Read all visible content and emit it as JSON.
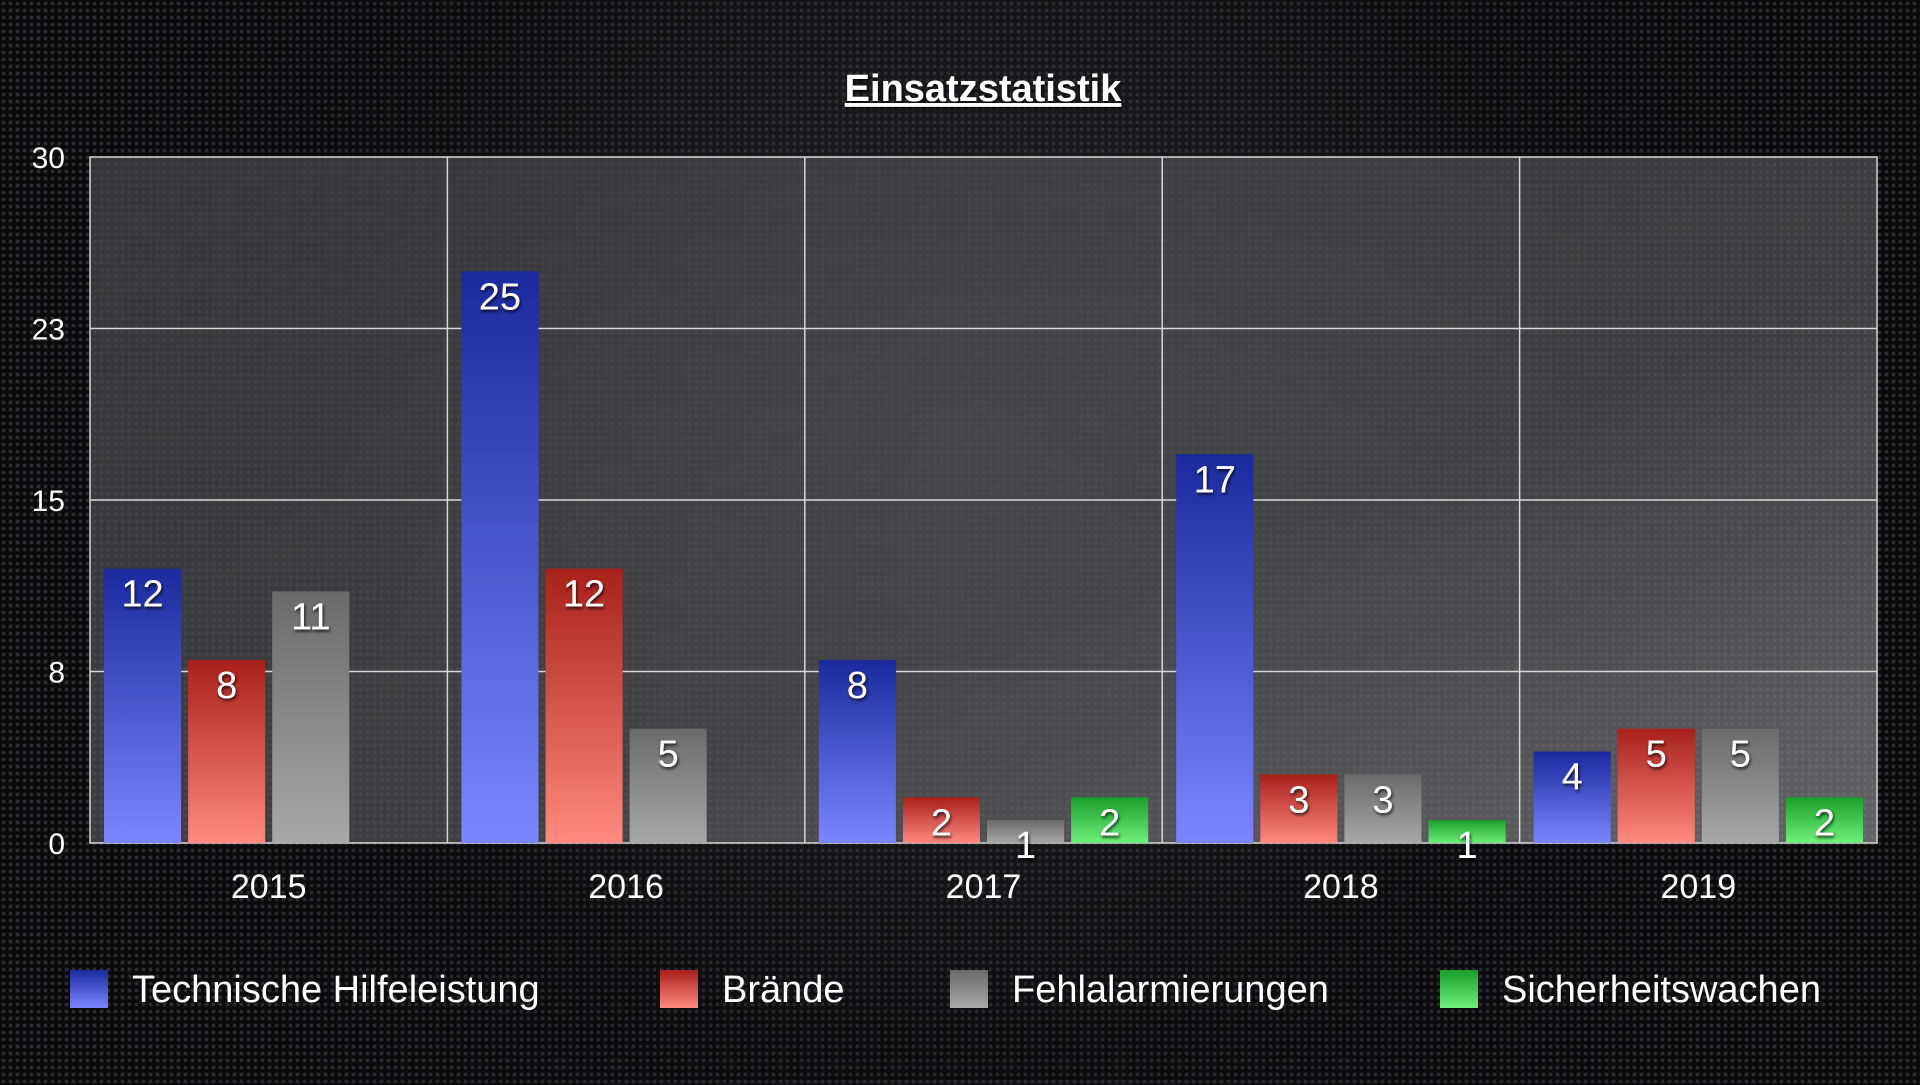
{
  "chart_data": {
    "type": "bar",
    "title": "Einsatzstatistik",
    "xlabel": "",
    "ylabel": "",
    "categories": [
      "2015",
      "2016",
      "2017",
      "2018",
      "2019"
    ],
    "y_ticks": [
      "0",
      "8",
      "15",
      "23",
      "30"
    ],
    "ylim": [
      0,
      30
    ],
    "grid": true,
    "legend_position": "bottom",
    "series": [
      {
        "name": "Technische Hilfeleistung",
        "values": [
          12,
          25,
          8,
          17,
          4
        ],
        "color_top": "#1a2a9e",
        "color_bottom": "#7b86ff"
      },
      {
        "name": "Brände",
        "values": [
          8,
          12,
          2,
          3,
          5
        ],
        "color_top": "#a8201a",
        "color_bottom": "#ff8a80"
      },
      {
        "name": "Fehlalarmierungen",
        "values": [
          11,
          5,
          1,
          3,
          5
        ],
        "color_top": "#6a6a6a",
        "color_bottom": "#a8a8a8"
      },
      {
        "name": "Sicherheitswachen",
        "values": [
          null,
          null,
          2,
          1,
          2
        ],
        "color_top": "#1a9e2a",
        "color_bottom": "#6ef07a"
      }
    ]
  }
}
